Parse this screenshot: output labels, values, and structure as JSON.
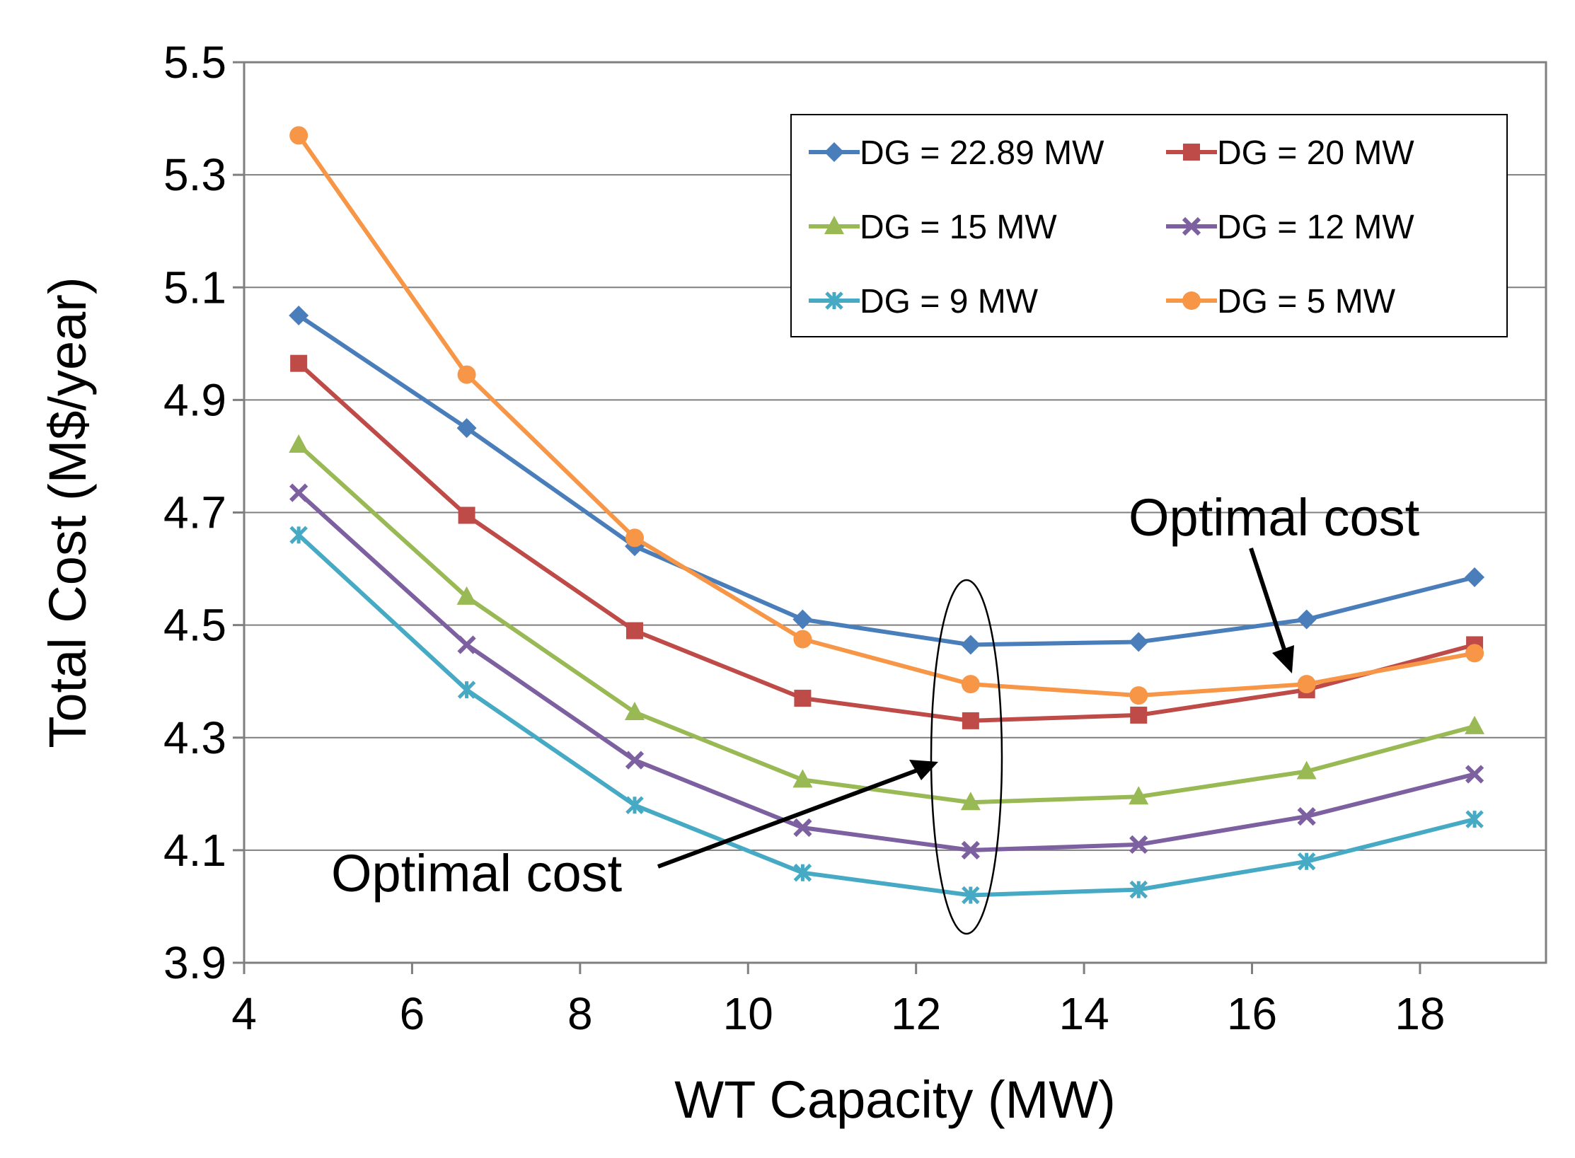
{
  "chart_data": {
    "type": "line",
    "title": "",
    "xlabel": "WT Capacity (MW)",
    "ylabel": "Total Cost (M$/year)",
    "xlim": [
      4,
      19.5
    ],
    "ylim": [
      3.9,
      5.5
    ],
    "xticks": [
      4,
      6,
      8,
      10,
      12,
      14,
      16,
      18
    ],
    "yticks": [
      3.9,
      4.1,
      4.3,
      4.5,
      4.7,
      4.9,
      5.1,
      5.3,
      5.5
    ],
    "xtick_labels": [
      "4",
      "6",
      "8",
      "10",
      "12",
      "14",
      "16",
      "18"
    ],
    "ytick_labels": [
      "3.9",
      "4.1",
      "4.3",
      "4.5",
      "4.7",
      "4.9",
      "5.1",
      "5.3",
      "5.5"
    ],
    "grid": "horizontal",
    "legend_position": "top-right",
    "x": [
      4.65,
      6.65,
      8.65,
      10.65,
      12.65,
      14.65,
      16.65,
      18.65
    ],
    "series": [
      {
        "name": "DG = 22.89 MW",
        "color": "#4a7ebb",
        "marker": "diamond",
        "values": [
          5.05,
          4.85,
          4.64,
          4.51,
          4.465,
          4.47,
          4.51,
          4.585
        ]
      },
      {
        "name": "DG = 20 MW",
        "color": "#be4b48",
        "marker": "square",
        "values": [
          4.965,
          4.695,
          4.49,
          4.37,
          4.33,
          4.34,
          4.385,
          4.465
        ]
      },
      {
        "name": "DG = 15 MW",
        "color": "#98b954",
        "marker": "triangle",
        "values": [
          4.82,
          4.55,
          4.345,
          4.225,
          4.185,
          4.195,
          4.24,
          4.32
        ]
      },
      {
        "name": "DG = 12 MW",
        "color": "#7d60a0",
        "marker": "x",
        "values": [
          4.735,
          4.465,
          4.26,
          4.14,
          4.1,
          4.11,
          4.16,
          4.235
        ]
      },
      {
        "name": "DG = 9 MW",
        "color": "#46aac5",
        "marker": "star",
        "values": [
          4.66,
          4.385,
          4.18,
          4.06,
          4.02,
          4.03,
          4.08,
          4.155
        ]
      },
      {
        "name": "DG = 5 MW",
        "color": "#f79646",
        "marker": "circle",
        "values": [
          5.37,
          4.945,
          4.655,
          4.475,
          4.395,
          4.375,
          4.395,
          4.45
        ]
      }
    ],
    "annotations": [
      {
        "text": "Optimal cost",
        "points_to_x": 12.65,
        "points_to_y": 4.26,
        "target": "ellipse around WT = 12.65 MW"
      },
      {
        "text": "Optimal cost",
        "points_to_x": 16.65,
        "points_to_y": 4.405,
        "target": "DG = 5 MW minimum region"
      }
    ]
  }
}
